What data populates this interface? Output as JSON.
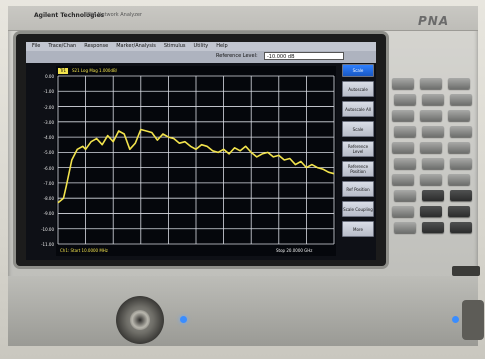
{
  "header": {
    "brand": "Agilent Technologies",
    "model": "PNA Network Analyzer",
    "product": "PNA"
  },
  "menu": [
    "File",
    "Trace/Chan",
    "Response",
    "Marker/Analysis",
    "Stimulus",
    "Utility",
    "Help"
  ],
  "toolbar": {
    "ref_label": "Reference Level:",
    "ref_value": "-10.000 dB"
  },
  "softkeys": [
    {
      "label": "Scale",
      "active": true
    },
    {
      "label": "Autoscale"
    },
    {
      "label": "Autoscale All"
    },
    {
      "label": "Scale"
    },
    {
      "label": "Reference Level"
    },
    {
      "label": "Reference Position"
    },
    {
      "label": "Ref Position"
    },
    {
      "label": "Scale Coupling"
    },
    {
      "label": "More"
    }
  ],
  "plot": {
    "trace_tag": "Tr1",
    "trace_info": "S21 Log Mag 1.000dB/",
    "status_left": "Ch1: Start 10.0000 MHz",
    "status_right": "Stop 20.0000 GHz",
    "trace_color": "#f2e34d",
    "grid_color": "#d8dbe3"
  },
  "chart_data": {
    "type": "line",
    "title": "",
    "xlabel": "",
    "ylabel": "",
    "yticks": [
      "0.00",
      "-1.00",
      "-2.00",
      "-3.00",
      "-4.00",
      "-5.00",
      "-6.00",
      "-7.00",
      "-8.00",
      "-9.00",
      "-10.00",
      "-11.00"
    ],
    "ylim": [
      -11,
      0
    ],
    "xlim": [
      0,
      100
    ],
    "series": [
      {
        "x": [
          0,
          2,
          3,
          5,
          7,
          9,
          10,
          12,
          14,
          16,
          18,
          20,
          22,
          24,
          26,
          28,
          30,
          32,
          34,
          36,
          38,
          40,
          42,
          44,
          46,
          48,
          50,
          52,
          54,
          56,
          58,
          60,
          62,
          64,
          66,
          68,
          70,
          72,
          74,
          76,
          78,
          80,
          82,
          84,
          86,
          88,
          90,
          92,
          94,
          96,
          98,
          100
        ],
        "y": [
          -8.3,
          -8.0,
          -7.2,
          -5.5,
          -4.8,
          -4.6,
          -4.8,
          -4.3,
          -4.1,
          -4.5,
          -3.9,
          -4.3,
          -3.6,
          -3.8,
          -4.8,
          -4.4,
          -3.5,
          -3.6,
          -3.7,
          -4.2,
          -3.8,
          -4.0,
          -4.1,
          -4.4,
          -4.3,
          -4.6,
          -4.8,
          -4.5,
          -4.6,
          -4.9,
          -5.0,
          -4.8,
          -5.1,
          -4.7,
          -4.9,
          -4.6,
          -5.0,
          -5.3,
          -5.1,
          -5.0,
          -5.3,
          -5.2,
          -5.5,
          -5.4,
          -5.8,
          -5.6,
          -6.0,
          -5.8,
          -6.0,
          -6.1,
          -6.3,
          -6.4
        ]
      }
    ],
    "grid": true,
    "legend": "none"
  }
}
